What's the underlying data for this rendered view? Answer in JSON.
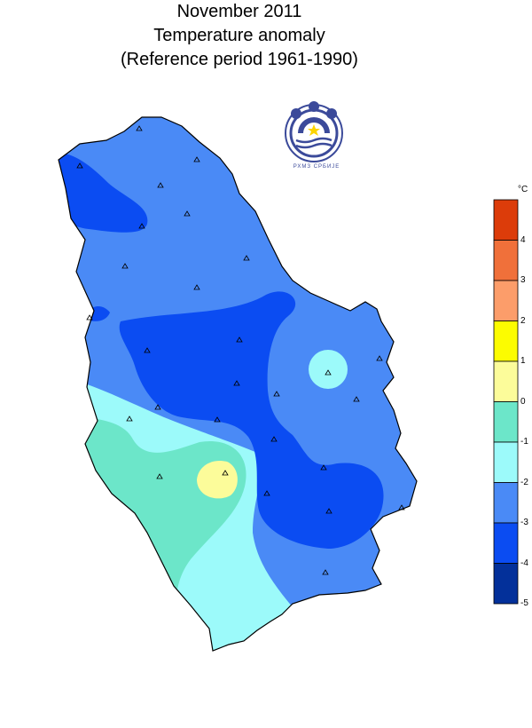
{
  "title": {
    "line1": "November  2011",
    "line2": "Temperature anomaly",
    "line3": "(Reference period 1961-1990)"
  },
  "legend": {
    "unit": "°C",
    "ticks": [
      "4",
      "3",
      "2",
      "1",
      "0",
      "-1",
      "-2",
      "-3",
      "-4",
      "-5"
    ],
    "classes": [
      {
        "range": [
          4,
          5
        ],
        "color": "#dc3c0a"
      },
      {
        "range": [
          3,
          4
        ],
        "color": "#f0703a"
      },
      {
        "range": [
          2,
          3
        ],
        "color": "#fc9d6a"
      },
      {
        "range": [
          1,
          2
        ],
        "color": "#fcfc00"
      },
      {
        "range": [
          0,
          1
        ],
        "color": "#fcfc9a"
      },
      {
        "range": [
          -1,
          0
        ],
        "color": "#6ce6c9"
      },
      {
        "range": [
          -2,
          -1
        ],
        "color": "#9cfafa"
      },
      {
        "range": [
          -3,
          -2
        ],
        "color": "#4a8af6"
      },
      {
        "range": [
          -4,
          -3
        ],
        "color": "#0b4cf2"
      },
      {
        "range": [
          -5,
          -4
        ],
        "color": "#03309a"
      }
    ]
  },
  "logo": {
    "caption": "РХМЗ  СРБИЈЕ",
    "icon": "rhmz-logo-icon"
  },
  "map": {
    "region": "Serbia",
    "station_marker": "triangle",
    "station_count": 28
  }
}
